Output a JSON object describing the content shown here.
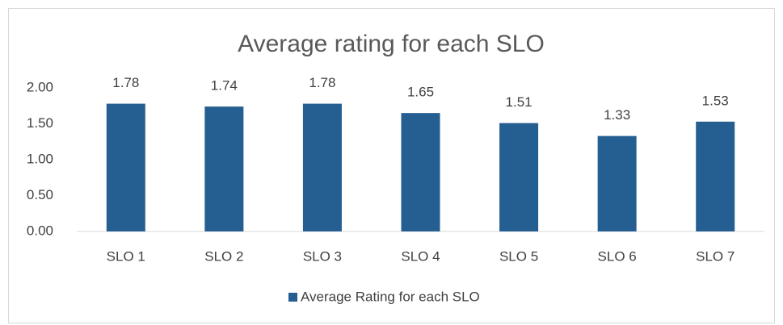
{
  "chart_data": {
    "type": "bar",
    "title": "Average rating for each SLO",
    "categories": [
      "SLO 1",
      "SLO 2",
      "SLO 3",
      "SLO 4",
      "SLO 5",
      "SLO 6",
      "SLO 7"
    ],
    "series": [
      {
        "name": "Average Rating for each SLO",
        "color": "#255e91",
        "values": [
          1.78,
          1.74,
          1.78,
          1.65,
          1.51,
          1.33,
          1.53
        ]
      }
    ],
    "ylim": [
      0,
      2
    ],
    "yticks": [
      {
        "value": 0,
        "label": "0.00"
      },
      {
        "value": 0.5,
        "label": "0.50"
      },
      {
        "value": 1,
        "label": "1.00"
      },
      {
        "value": 1.5,
        "label": "1.50"
      },
      {
        "value": 2,
        "label": "2.00"
      }
    ],
    "grid": false,
    "legend": "bottom"
  }
}
